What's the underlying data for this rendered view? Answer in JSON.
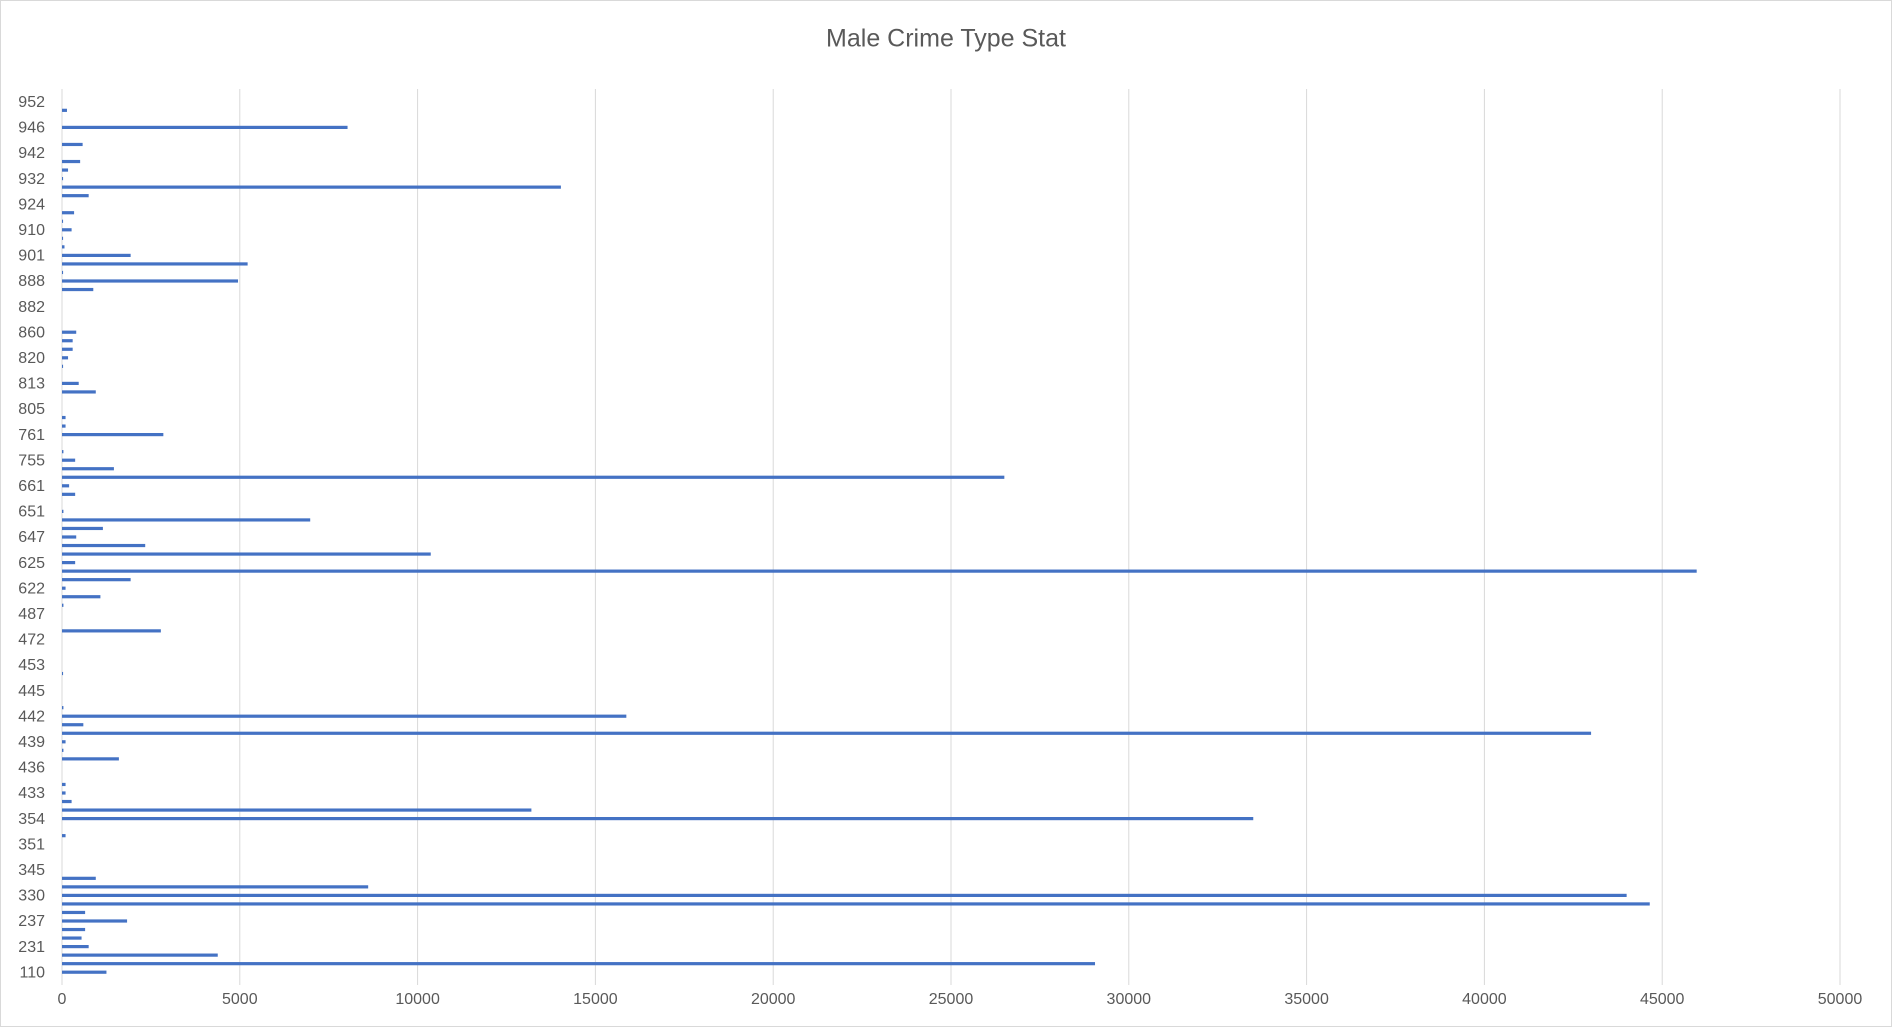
{
  "chart_data": {
    "type": "hbar",
    "title": "Male Crime Type Stat",
    "categories": [
      null,
      "110",
      null,
      null,
      "231",
      null,
      null,
      "237",
      null,
      null,
      "330",
      null,
      null,
      "345",
      null,
      null,
      "351",
      null,
      null,
      "354",
      null,
      null,
      "433",
      null,
      null,
      "436",
      null,
      null,
      "439",
      null,
      null,
      "442",
      null,
      null,
      "445",
      null,
      null,
      "453",
      null,
      null,
      "472",
      null,
      null,
      "487",
      null,
      null,
      "622",
      null,
      null,
      "625",
      null,
      null,
      "647",
      null,
      null,
      "651",
      null,
      null,
      "661",
      null,
      null,
      "755",
      null,
      null,
      "761",
      null,
      null,
      "805",
      null,
      null,
      "813",
      null,
      null,
      "820",
      null,
      null,
      "860",
      null,
      null,
      "882",
      null,
      null,
      "888",
      null,
      null,
      "901",
      null,
      null,
      "910",
      null,
      null,
      "924",
      null,
      null,
      "932",
      null,
      null,
      "942",
      null,
      null,
      "946",
      null,
      null,
      "952",
      null
    ],
    "values": [
      0,
      1250,
      29050,
      4380,
      750,
      550,
      650,
      1830,
      650,
      44650,
      44000,
      8610,
      950,
      0,
      0,
      0,
      0,
      100,
      0,
      33500,
      13200,
      270,
      100,
      100,
      0,
      0,
      1600,
      40,
      100,
      43000,
      600,
      15870,
      40,
      0,
      0,
      0,
      30,
      0,
      0,
      0,
      0,
      2780,
      0,
      0,
      40,
      1080,
      100,
      1930,
      45970,
      370,
      10370,
      2340,
      400,
      1150,
      6980,
      40,
      0,
      370,
      200,
      26500,
      1460,
      370,
      40,
      0,
      2850,
      100,
      100,
      0,
      0,
      950,
      470,
      0,
      30,
      170,
      300,
      300,
      400,
      0,
      0,
      0,
      0,
      880,
      4950,
      30,
      5220,
      1930,
      70,
      30,
      270,
      30,
      340,
      0,
      750,
      14030,
      30,
      170,
      510,
      0,
      580,
      0,
      8030,
      0,
      140,
      0,
      0
    ],
    "color": "#4472c4",
    "xlim": [
      0,
      50000
    ],
    "xticks": [
      0,
      5000,
      10000,
      15000,
      20000,
      25000,
      30000,
      35000,
      40000,
      45000,
      50000
    ],
    "grid": true
  }
}
